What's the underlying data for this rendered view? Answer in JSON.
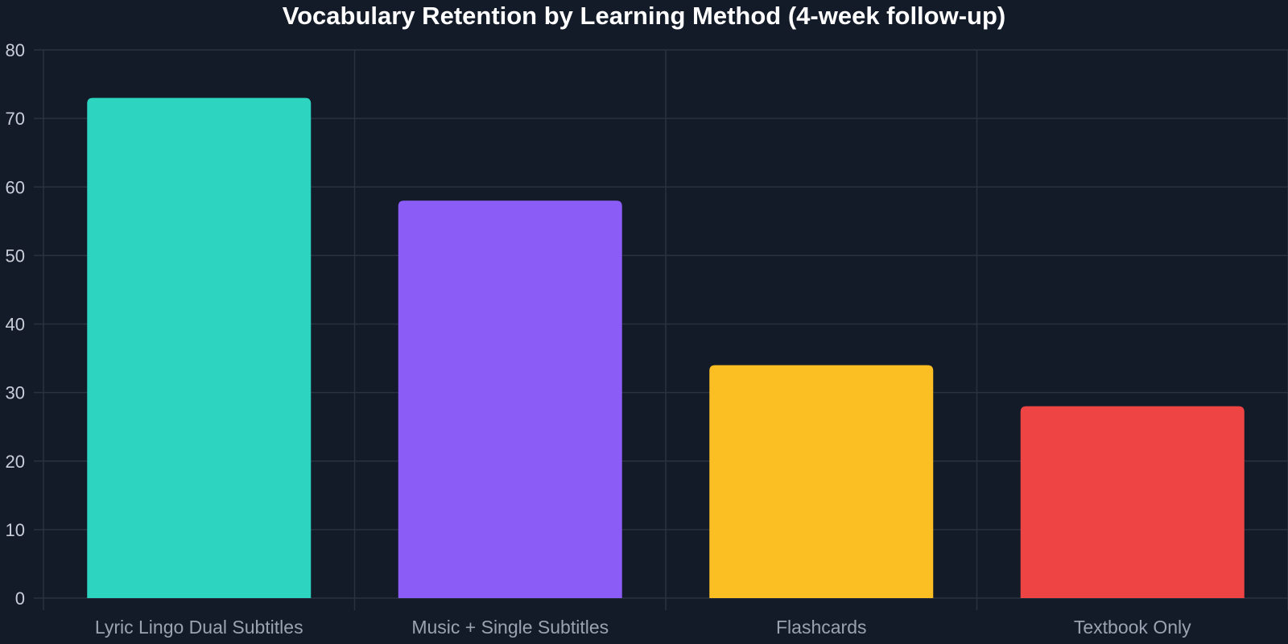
{
  "chart_data": {
    "type": "bar",
    "title": "Vocabulary Retention by Learning Method (4-week follow-up)",
    "xlabel": "",
    "ylabel": "",
    "categories": [
      "Lyric Lingo Dual Subtitles",
      "Music + Single Subtitles",
      "Flashcards",
      "Textbook Only"
    ],
    "values": [
      73,
      58,
      34,
      28
    ],
    "colors": [
      "#2dd4bf",
      "#8b5cf6",
      "#fbbf24",
      "#ef4444"
    ],
    "ylim": [
      0,
      80
    ],
    "y_ticks": [
      0,
      10,
      20,
      30,
      40,
      50,
      60,
      70,
      80
    ],
    "grid": true,
    "legend": "none"
  },
  "theme": {
    "background": "#131a28",
    "grid_color": "#2a3242",
    "title_color": "#ffffff",
    "tick_color": "#c9ced8",
    "category_color": "#9aa3b2"
  }
}
